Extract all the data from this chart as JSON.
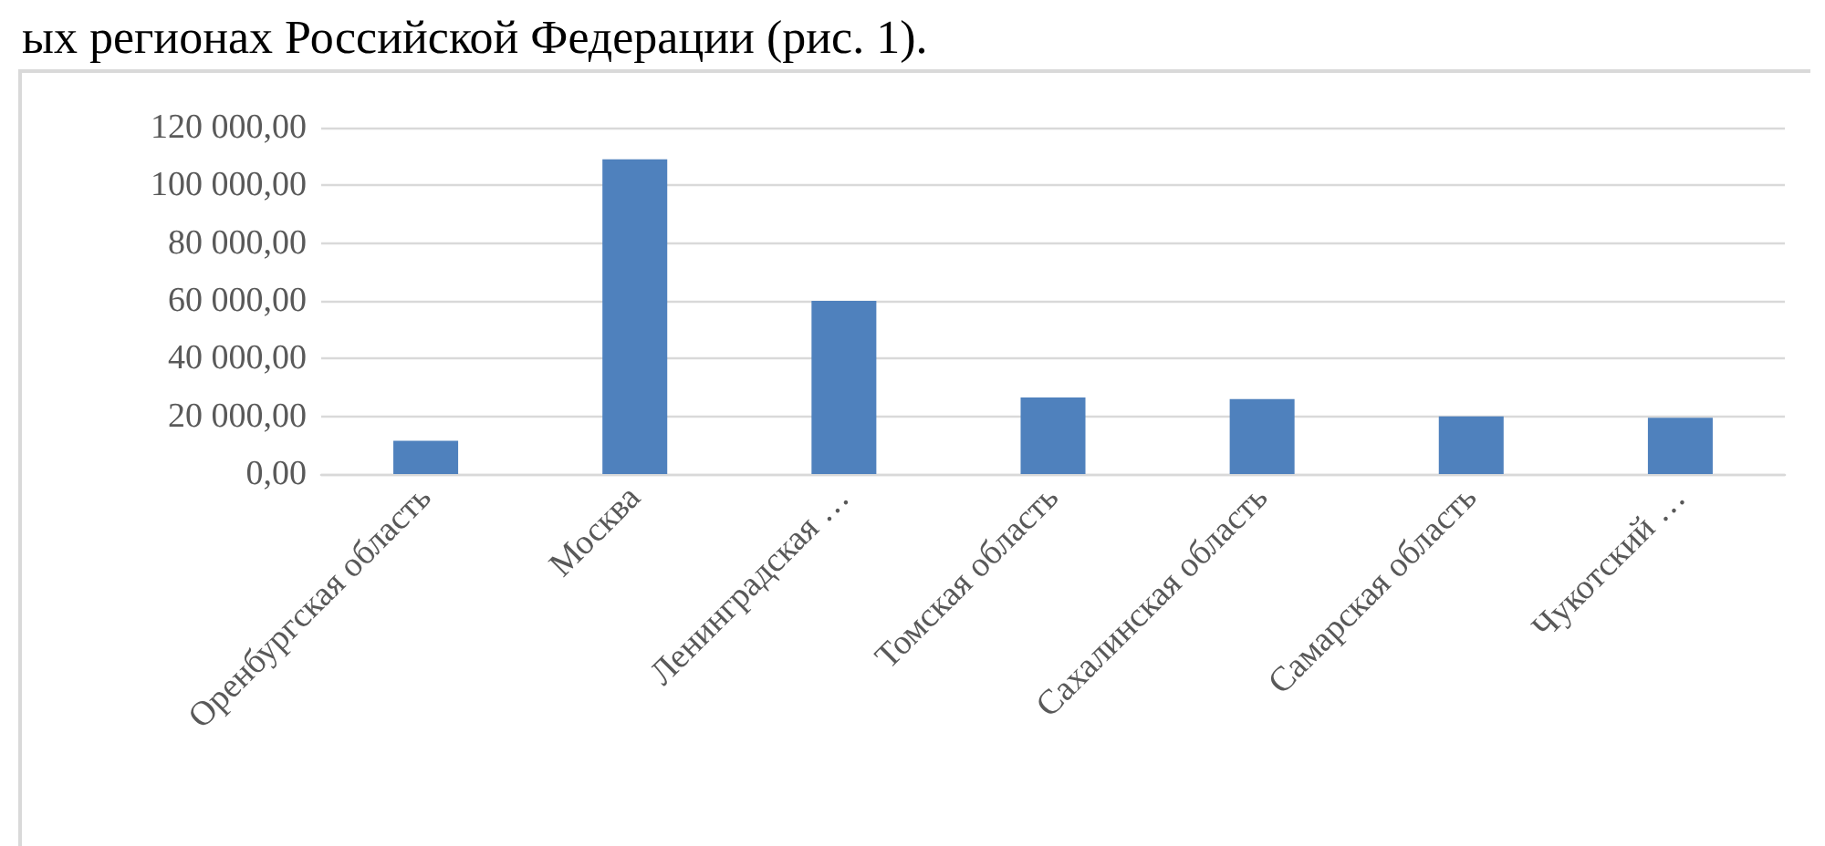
{
  "chart_data": {
    "type": "bar",
    "annotations": [
      "ых регионах Российской Федерации (рис. 1)."
    ],
    "categories": [
      "Оренбургская область",
      "Москва",
      "Ленинградская …",
      "Томская область",
      "Сахалинская область",
      "Самарская область",
      "Чукотский …"
    ],
    "values": [
      11500,
      109000,
      60000,
      26500,
      26000,
      20000,
      19500
    ],
    "color": "#4f81bd",
    "ylim": [
      0,
      120000
    ],
    "yticks": [
      {
        "value": 0,
        "label": "0,00"
      },
      {
        "value": 20000,
        "label": "20 000,00"
      },
      {
        "value": 40000,
        "label": "40 000,00"
      },
      {
        "value": 60000,
        "label": "60 000,00"
      },
      {
        "value": 80000,
        "label": "80 000,00"
      },
      {
        "value": 100000,
        "label": "100 000,00"
      },
      {
        "value": 120000,
        "label": "120 000,00"
      }
    ],
    "grid": "y"
  }
}
